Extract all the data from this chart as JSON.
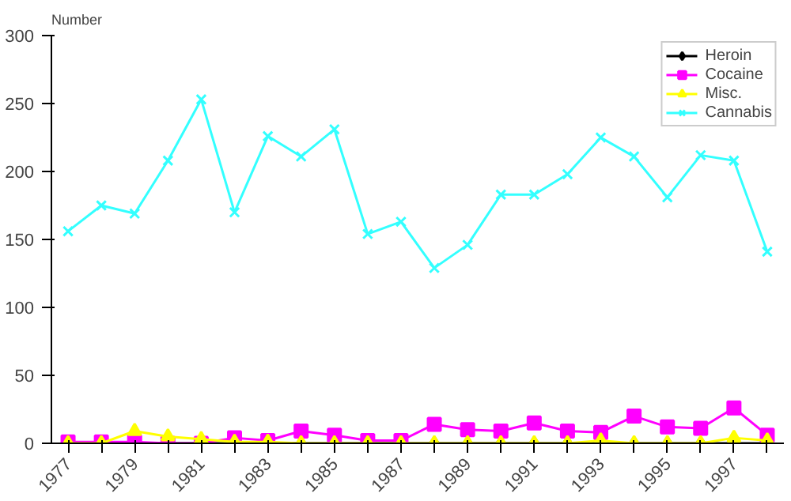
{
  "chart_data": {
    "type": "line",
    "ylabel": "Number",
    "categories": [
      "1977",
      null,
      "1979",
      null,
      "1981",
      null,
      "1983",
      null,
      "1985",
      null,
      "1987",
      null,
      "1989",
      null,
      "1991",
      null,
      "1993",
      null,
      "1995",
      null,
      "1997",
      null
    ],
    "ylim": [
      0,
      300
    ],
    "yticks": [
      0,
      50,
      100,
      150,
      200,
      250,
      300
    ],
    "grid": false,
    "legend": "top right",
    "series": [
      {
        "name": "Heroin",
        "color": "#000000",
        "marker": "diamond",
        "values": [
          0,
          0,
          0,
          0,
          0,
          0,
          0,
          0,
          0,
          0,
          0,
          0,
          0,
          0,
          0,
          0,
          0,
          0,
          0,
          0,
          0,
          0
        ]
      },
      {
        "name": "Cocaine",
        "color": "#ff00ff",
        "marker": "square",
        "values": [
          1,
          1,
          1,
          0,
          0,
          4,
          2,
          9,
          6,
          2,
          2,
          14,
          10,
          9,
          15,
          9,
          8,
          20,
          12,
          11,
          26,
          6
        ]
      },
      {
        "name": "Misc.",
        "color": "#ffff00",
        "marker": "triangle",
        "values": [
          0,
          0,
          9,
          5,
          3,
          1,
          1,
          0,
          0,
          0,
          0,
          0,
          0,
          0,
          0,
          0,
          2,
          0,
          0,
          0,
          4,
          2
        ]
      },
      {
        "name": "Cannabis",
        "color": "#33ffff",
        "marker": "cross",
        "values": [
          156,
          175,
          169,
          208,
          253,
          170,
          226,
          211,
          231,
          154,
          163,
          129,
          146,
          183,
          183,
          198,
          225,
          211,
          181,
          212,
          208,
          141
        ]
      }
    ]
  }
}
